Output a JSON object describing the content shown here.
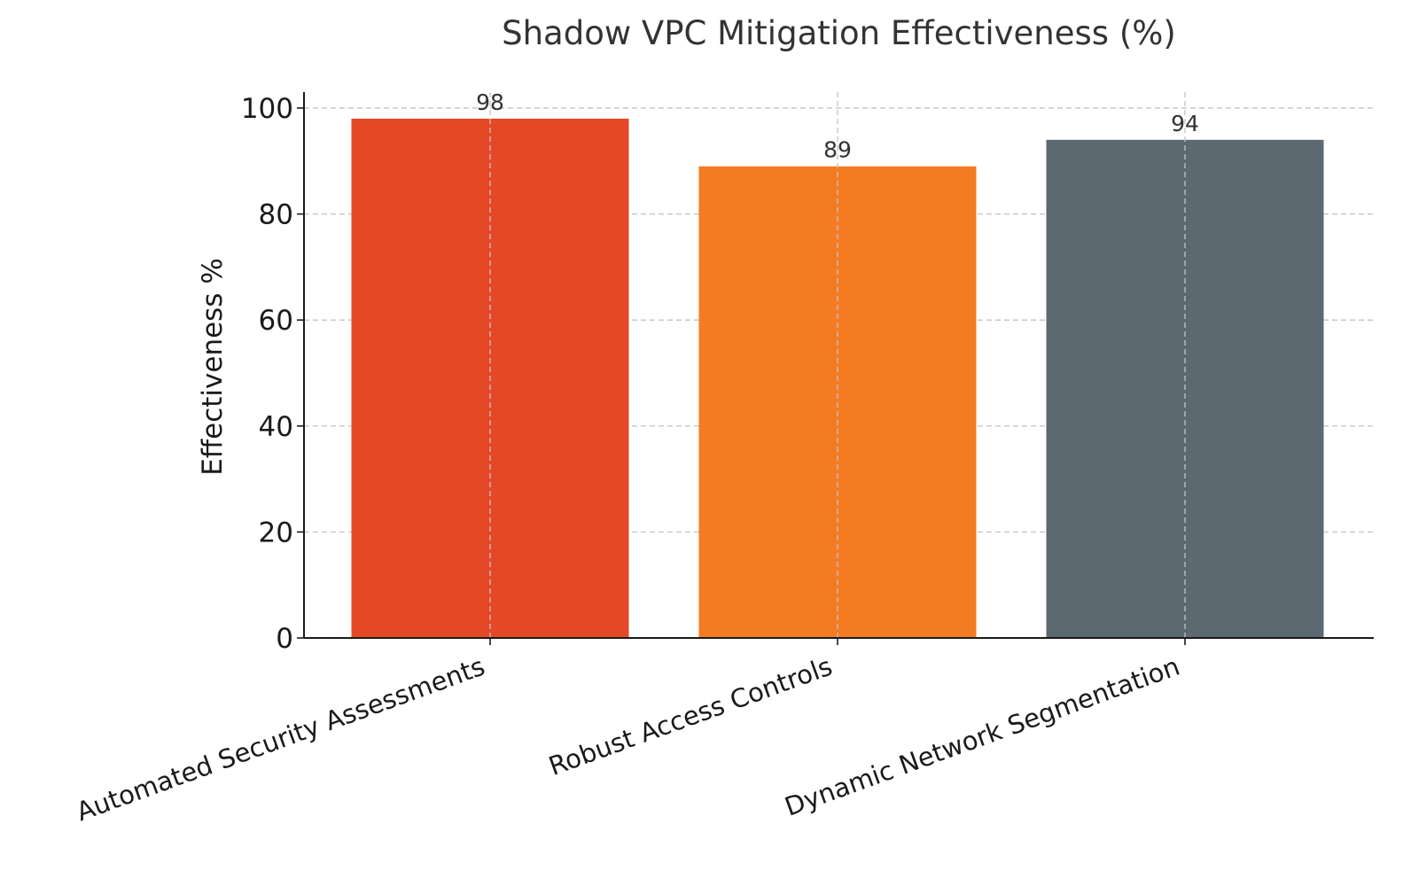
{
  "chart_data": {
    "type": "bar",
    "title": "Shadow VPC Mitigation Effectiveness (%)",
    "xlabel": "",
    "ylabel": "Effectiveness %",
    "categories": [
      "Automated Security Assessments",
      "Robust Access Controls",
      "Dynamic Network Segmentation"
    ],
    "values": [
      98,
      89,
      94
    ],
    "colors": [
      "#e54827",
      "#f37b22",
      "#5d6970"
    ],
    "ylim": [
      0,
      103
    ],
    "yticks": [
      0,
      20,
      40,
      60,
      80,
      100
    ],
    "grid": true,
    "legend": "none",
    "data_labels": true
  }
}
